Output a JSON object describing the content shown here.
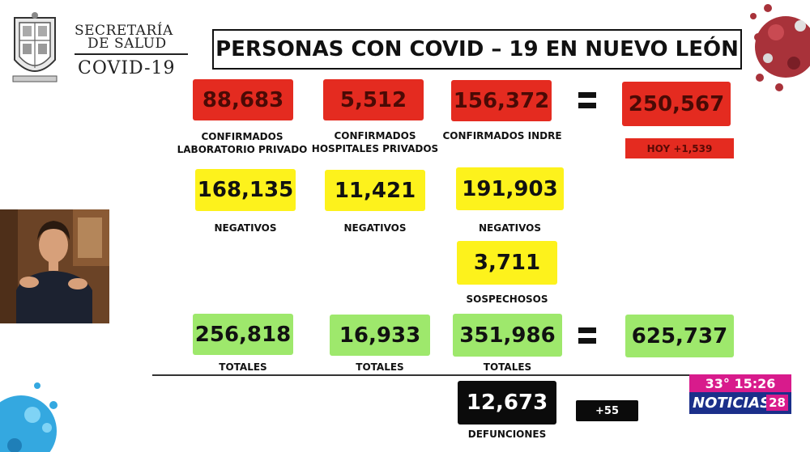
{
  "logo": {
    "line1": "SECRETARÍA",
    "line2": "DE SALUD",
    "line3": "COVID-19"
  },
  "title": "PERSONAS CON COVID – 19 EN NUEVO LEÓN",
  "row_confirmed": [
    {
      "value": "88,683",
      "label_line1": "CONFIRMADOS",
      "label_line2": "LABORATORIO PRIVADO"
    },
    {
      "value": "5,512",
      "label_line1": "CONFIRMADOS",
      "label_line2": "HOSPITALES PRIVADOS"
    },
    {
      "value": "156,372",
      "label_line1": "CONFIRMADOS INDRE",
      "label_line2": ""
    }
  ],
  "confirmed_total": "250,567",
  "today": "HOY +1,539",
  "row_negative": [
    {
      "value": "168,135",
      "label": "NEGATIVOS"
    },
    {
      "value": "11,421",
      "label": "NEGATIVOS"
    },
    {
      "value": "191,903",
      "label": "NEGATIVOS"
    }
  ],
  "suspects": {
    "value": "3,711",
    "label": "SOSPECHOSOS"
  },
  "row_totals": [
    {
      "value": "256,818",
      "label": "TOTALES"
    },
    {
      "value": "16,933",
      "label": "TOTALES"
    },
    {
      "value": "351,986",
      "label": "TOTALES"
    }
  ],
  "grand_total": "625,737",
  "deaths": {
    "value": "12,673",
    "label": "DEFUNCIONES",
    "today": "+55"
  },
  "tv_bug": {
    "weather": "33° 15:26",
    "channel_name": "NOTICIAS",
    "channel_number": "28"
  },
  "colors": {
    "red": "#e42b20",
    "yellow": "#fdf21c",
    "green": "#9ee86c",
    "black": "#0b0b0b"
  }
}
